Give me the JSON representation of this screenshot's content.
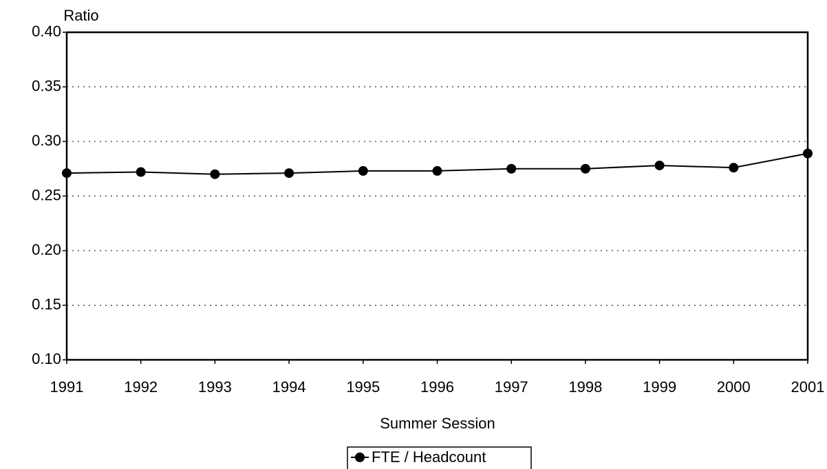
{
  "chart_data": {
    "type": "line",
    "y_label": "Ratio",
    "x_label": "Summer Session",
    "x": [
      1991,
      1992,
      1993,
      1994,
      1995,
      1996,
      1997,
      1998,
      1999,
      2000,
      2001
    ],
    "series": [
      {
        "name": "FTE / Headcount",
        "color": "#000000",
        "values": [
          0.271,
          0.272,
          0.27,
          0.271,
          0.273,
          0.273,
          0.275,
          0.275,
          0.278,
          0.276,
          0.289
        ]
      }
    ],
    "xlim": [
      1991,
      2001
    ],
    "xticks": [
      1991,
      1992,
      1993,
      1994,
      1995,
      1996,
      1997,
      1998,
      1999,
      2000,
      2001
    ],
    "ylim": [
      0.1,
      0.4
    ],
    "yticks": [
      {
        "value": 0.1,
        "label": "0.10"
      },
      {
        "value": 0.15,
        "label": "0.15"
      },
      {
        "value": 0.2,
        "label": "0.20"
      },
      {
        "value": 0.25,
        "label": "0.25"
      },
      {
        "value": 0.3,
        "label": "0.30"
      },
      {
        "value": 0.35,
        "label": "0.35"
      },
      {
        "value": 0.4,
        "label": "0.40"
      }
    ],
    "grid": true,
    "legend": "bottom"
  }
}
